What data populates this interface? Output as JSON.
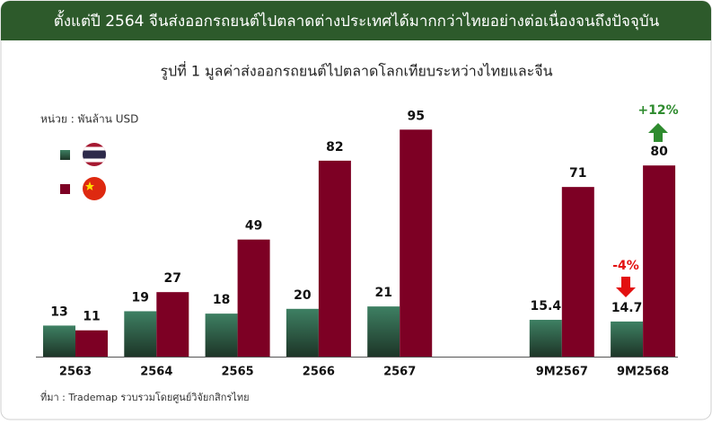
{
  "header": {
    "title": "ตั้งแต่ปี 2564 จีนส่งออกรถยนต์ไปตลาดต่างประเทศได้มากกว่าไทยอย่างต่อเนื่องจนถึงปัจจุบัน"
  },
  "chart_data": {
    "type": "bar",
    "title": "รูปที่ 1 มูลค่าส่งออกรถยนต์ไปตลาดโลกเทียบระหว่างไทยและจีน",
    "unit_label": "หน่วย : พันล้าน USD",
    "categories": [
      "2563",
      "2564",
      "2565",
      "2566",
      "2567",
      null,
      "9M2567",
      "9M2568"
    ],
    "series": [
      {
        "color": "#2f6148",
        "values": [
          13,
          19,
          18,
          20,
          21,
          null,
          15.4,
          14.7
        ]
      },
      {
        "color": "#7d0024",
        "values": [
          11,
          27,
          49,
          82,
          95,
          null,
          71,
          80
        ]
      }
    ],
    "annotations": [
      "+12%",
      "-4%"
    ],
    "source": "ที่มา : Trademap รวบรวมโดยศูนย์วิจัยกสิกรไทย"
  }
}
